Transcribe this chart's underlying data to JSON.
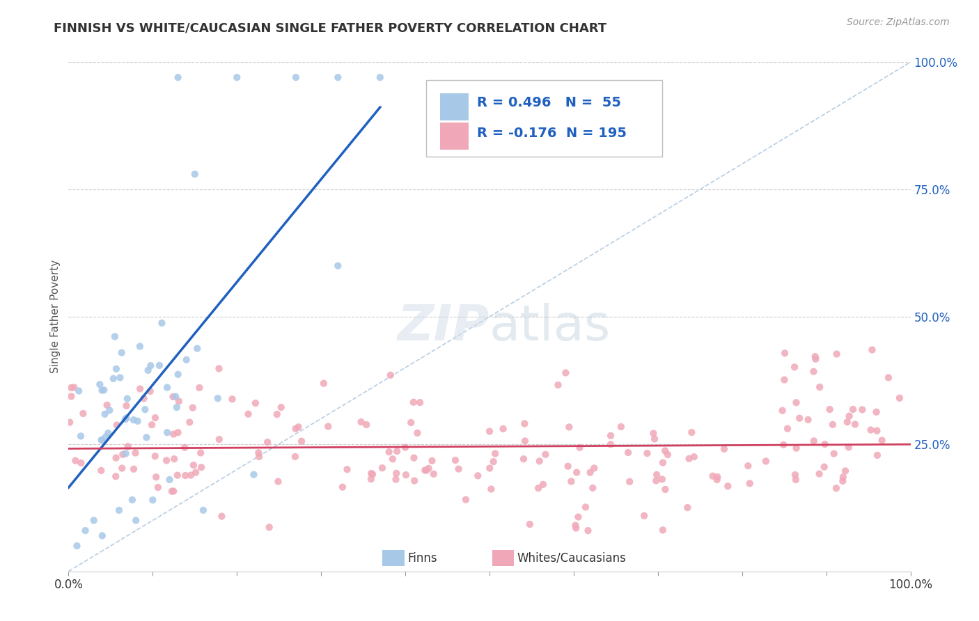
{
  "title": "FINNISH VS WHITE/CAUCASIAN SINGLE FATHER POVERTY CORRELATION CHART",
  "source": "Source: ZipAtlas.com",
  "ylabel": "Single Father Poverty",
  "r_finns": 0.496,
  "n_finns": 55,
  "r_whites": -0.176,
  "n_whites": 195,
  "finns_color": "#a8c8e8",
  "whites_color": "#f0a8b8",
  "finns_line_color": "#2060c0",
  "whites_line_color": "#d04060",
  "diag_line_color": "#b0c8e0",
  "title_color": "#333333",
  "source_color": "#999999",
  "legend_r_color": "#2060c0",
  "background": "#ffffff",
  "xlim": [
    0,
    1
  ],
  "ylim": [
    0,
    1
  ],
  "yticks": [
    0.25,
    0.5,
    0.75,
    1.0
  ],
  "ytick_labels": [
    "25.0%",
    "50.0%",
    "75.0%",
    "100.0%"
  ],
  "xtick_labels_show": [
    "0.0%",
    "100.0%"
  ]
}
